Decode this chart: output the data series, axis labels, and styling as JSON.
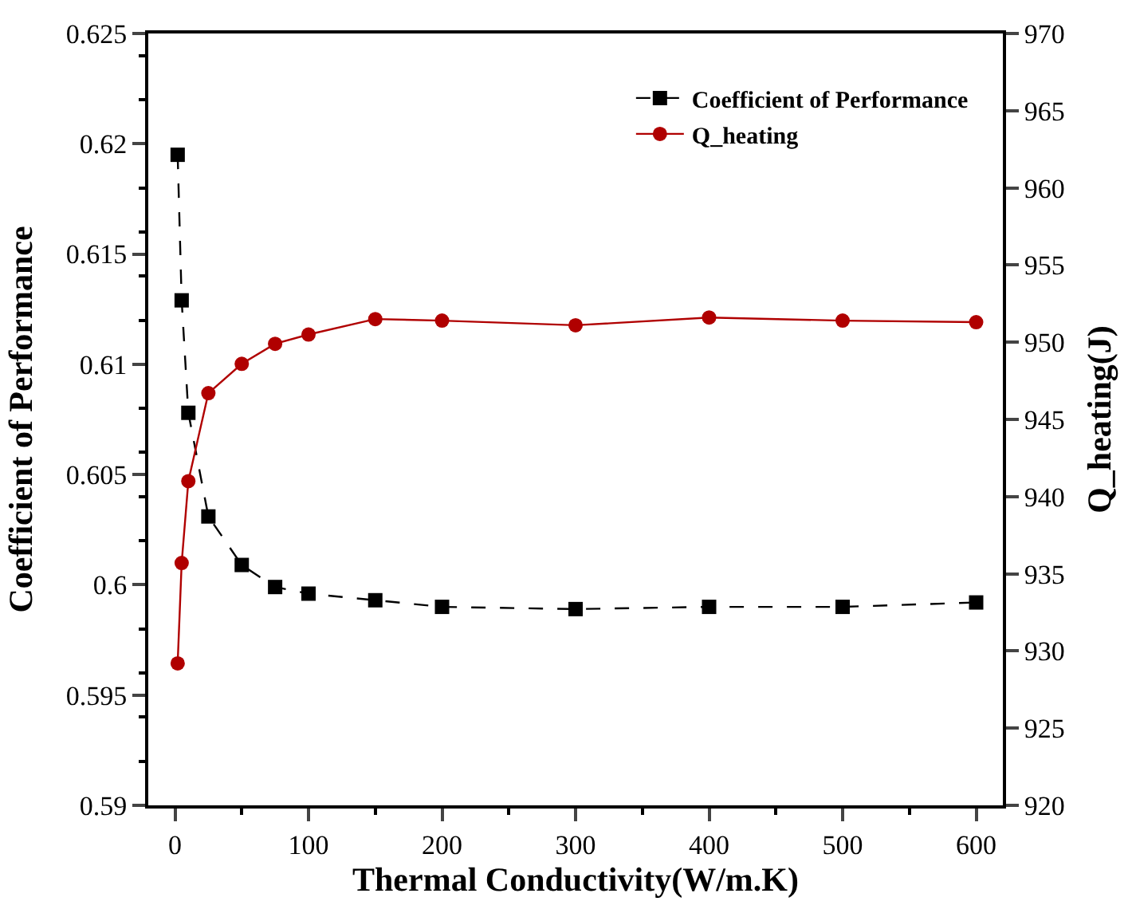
{
  "chart_data": {
    "type": "line",
    "xlabel": "Thermal Conductivity(W/m.K)",
    "ylabel": "Coefficient of Performance",
    "y2label": "Q_heating(J)",
    "x": [
      2,
      5,
      10,
      25,
      50,
      75,
      100,
      150,
      200,
      300,
      400,
      500,
      600
    ],
    "series": [
      {
        "name": "Coefficient of Performance",
        "color": "#000000",
        "marker": "square",
        "line_style": "dashed",
        "values": [
          0.6195,
          0.6129,
          0.6078,
          0.6031,
          0.6009,
          0.5999,
          0.5996,
          0.5993,
          0.599,
          0.5989,
          0.599,
          0.599,
          0.5992
        ]
      },
      {
        "name": "Q_heating",
        "color": "#b00000",
        "marker": "circle",
        "line_style": "solid",
        "axis": "y2",
        "values": [
          929.2,
          935.7,
          941.0,
          946.7,
          948.6,
          949.9,
          950.5,
          951.5,
          951.4,
          951.1,
          951.6,
          951.4,
          951.3
        ]
      }
    ],
    "xlim": [
      -20,
      620
    ],
    "xticks": [
      0,
      100,
      200,
      300,
      400,
      500,
      600
    ],
    "ylim": [
      0.59,
      0.625
    ],
    "yticks": [
      0.59,
      0.595,
      0.6,
      0.605,
      0.61,
      0.615,
      0.62,
      0.625
    ],
    "y2lim": [
      920,
      970
    ],
    "y2ticks": [
      920,
      925,
      930,
      935,
      940,
      945,
      950,
      955,
      960,
      965,
      970
    ],
    "legend": "top right"
  }
}
